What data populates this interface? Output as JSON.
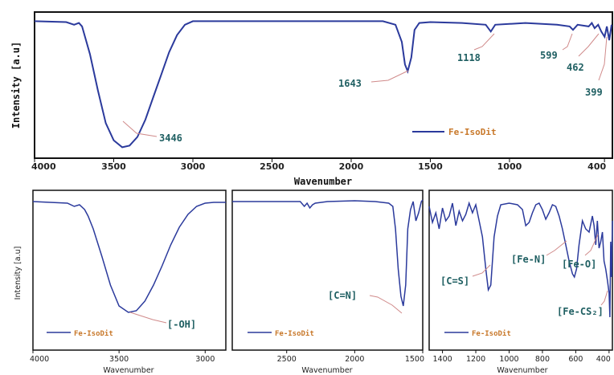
{
  "chart_data": [
    {
      "type": "line",
      "panel": "main",
      "xlabel": "Wavenumber",
      "ylabel": "Intensity [a.u]",
      "xlim": [
        4000,
        350
      ],
      "x_reversed": true,
      "xticks": [
        4000,
        3500,
        3000,
        2500,
        2000,
        1500,
        1000,
        400
      ],
      "legend": "Fe-IsoDit",
      "legend_position": "bottom-right",
      "series_color": "#2b3a9c",
      "annotation_color": "#1f5f62",
      "leader_color": "#d08a8a",
      "series": [
        {
          "name": "Fe-IsoDit",
          "x": [
            4000,
            3800,
            3750,
            3720,
            3700,
            3650,
            3600,
            3550,
            3500,
            3446,
            3400,
            3350,
            3300,
            3250,
            3200,
            3150,
            3100,
            3050,
            3000,
            2900,
            2500,
            2000,
            1800,
            1720,
            1680,
            1660,
            1643,
            1620,
            1600,
            1570,
            1500,
            1300,
            1150,
            1118,
            1090,
            900,
            700,
            620,
            599,
            570,
            500,
            480,
            462,
            440,
            420,
            399,
            385,
            370,
            355
          ],
          "y": [
            97,
            96.5,
            95,
            96,
            94,
            78,
            57,
            38,
            28,
            24,
            25,
            30,
            40,
            53,
            66,
            79,
            89,
            95,
            97,
            97,
            97,
            97,
            97,
            95,
            85,
            72,
            68,
            76,
            92,
            96,
            96.5,
            96,
            95,
            91,
            95,
            96,
            95,
            94,
            92,
            95,
            94,
            96,
            93,
            95,
            91,
            88,
            94,
            86,
            95
          ]
        }
      ],
      "annotations": [
        "3446",
        "1643",
        "1118",
        "599",
        "462",
        "399"
      ]
    },
    {
      "type": "line",
      "panel": "inset-1",
      "xlabel": "Wavenumber",
      "ylabel": "Intensity [a.u]",
      "xlim": [
        4000,
        2880
      ],
      "x_reversed": true,
      "xticks": [
        4000,
        3500,
        3000
      ],
      "legend": "Fe-IsoDit",
      "series": [
        {
          "name": "Fe-IsoDit",
          "x": [
            4000,
            3900,
            3800,
            3760,
            3730,
            3700,
            3680,
            3650,
            3600,
            3550,
            3500,
            3446,
            3400,
            3350,
            3300,
            3250,
            3200,
            3150,
            3100,
            3050,
            3000,
            2950,
            2900,
            2880
          ],
          "y": [
            97,
            96.5,
            96,
            94,
            95,
            92,
            88,
            80,
            63,
            45,
            32,
            28,
            29,
            35,
            45,
            57,
            70,
            81,
            89,
            94,
            96,
            96.5,
            96.5,
            96.5
          ]
        }
      ],
      "annotations": [
        "[-OH]"
      ]
    },
    {
      "type": "line",
      "panel": "inset-2",
      "xlabel": "Wavenumber",
      "xlim": [
        2900,
        1500
      ],
      "x_reversed": true,
      "xticks": [
        2500,
        2000,
        1500
      ],
      "legend": "Fe-IsoDit",
      "series": [
        {
          "name": "Fe-IsoDit",
          "x": [
            2900,
            2700,
            2500,
            2400,
            2370,
            2350,
            2330,
            2310,
            2290,
            2200,
            2000,
            1850,
            1750,
            1720,
            1700,
            1680,
            1660,
            1643,
            1625,
            1610,
            1590,
            1570,
            1550,
            1530,
            1510,
            1500
          ],
          "y": [
            97,
            97,
            97,
            97,
            94,
            96,
            93,
            95,
            96,
            97,
            97.5,
            97,
            96,
            94,
            80,
            55,
            38,
            32,
            45,
            80,
            92,
            97,
            85,
            90,
            97,
            98
          ]
        }
      ],
      "annotations": [
        "[C=N]"
      ]
    },
    {
      "type": "line",
      "panel": "inset-3",
      "xlabel": "Wavenumber",
      "xlim": [
        1480,
        380
      ],
      "x_reversed": true,
      "xticks": [
        1400,
        1200,
        1000,
        800,
        600,
        400
      ],
      "legend": "Fe-IsoDit",
      "series": [
        {
          "name": "Fe-IsoDit",
          "x": [
            1480,
            1460,
            1440,
            1420,
            1400,
            1380,
            1360,
            1340,
            1320,
            1300,
            1280,
            1260,
            1240,
            1220,
            1200,
            1180,
            1160,
            1140,
            1125,
            1110,
            1090,
            1070,
            1050,
            1000,
            950,
            920,
            900,
            880,
            860,
            840,
            820,
            800,
            780,
            760,
            740,
            720,
            700,
            680,
            660,
            640,
            620,
            608,
            595,
            580,
            560,
            540,
            520,
            500,
            490,
            480,
            470,
            460,
            450,
            440,
            430,
            420,
            410,
            400,
            395,
            390,
            385,
            380
          ],
          "y": [
            94,
            84,
            90,
            80,
            93,
            85,
            88,
            96,
            82,
            91,
            85,
            89,
            96,
            90,
            95,
            85,
            75,
            55,
            42,
            45,
            75,
            88,
            95,
            96,
            95,
            92,
            82,
            84,
            90,
            95,
            96,
            92,
            86,
            90,
            95,
            94,
            88,
            80,
            70,
            60,
            52,
            50,
            55,
            70,
            85,
            80,
            78,
            88,
            82,
            70,
            85,
            68,
            72,
            78,
            60,
            55,
            48,
            40,
            25,
            72,
            50,
            85
          ]
        }
      ],
      "annotations": [
        "[C=S]",
        "[Fe-N]",
        "[Fe-O]",
        "[Fe-CS₂]"
      ]
    }
  ]
}
